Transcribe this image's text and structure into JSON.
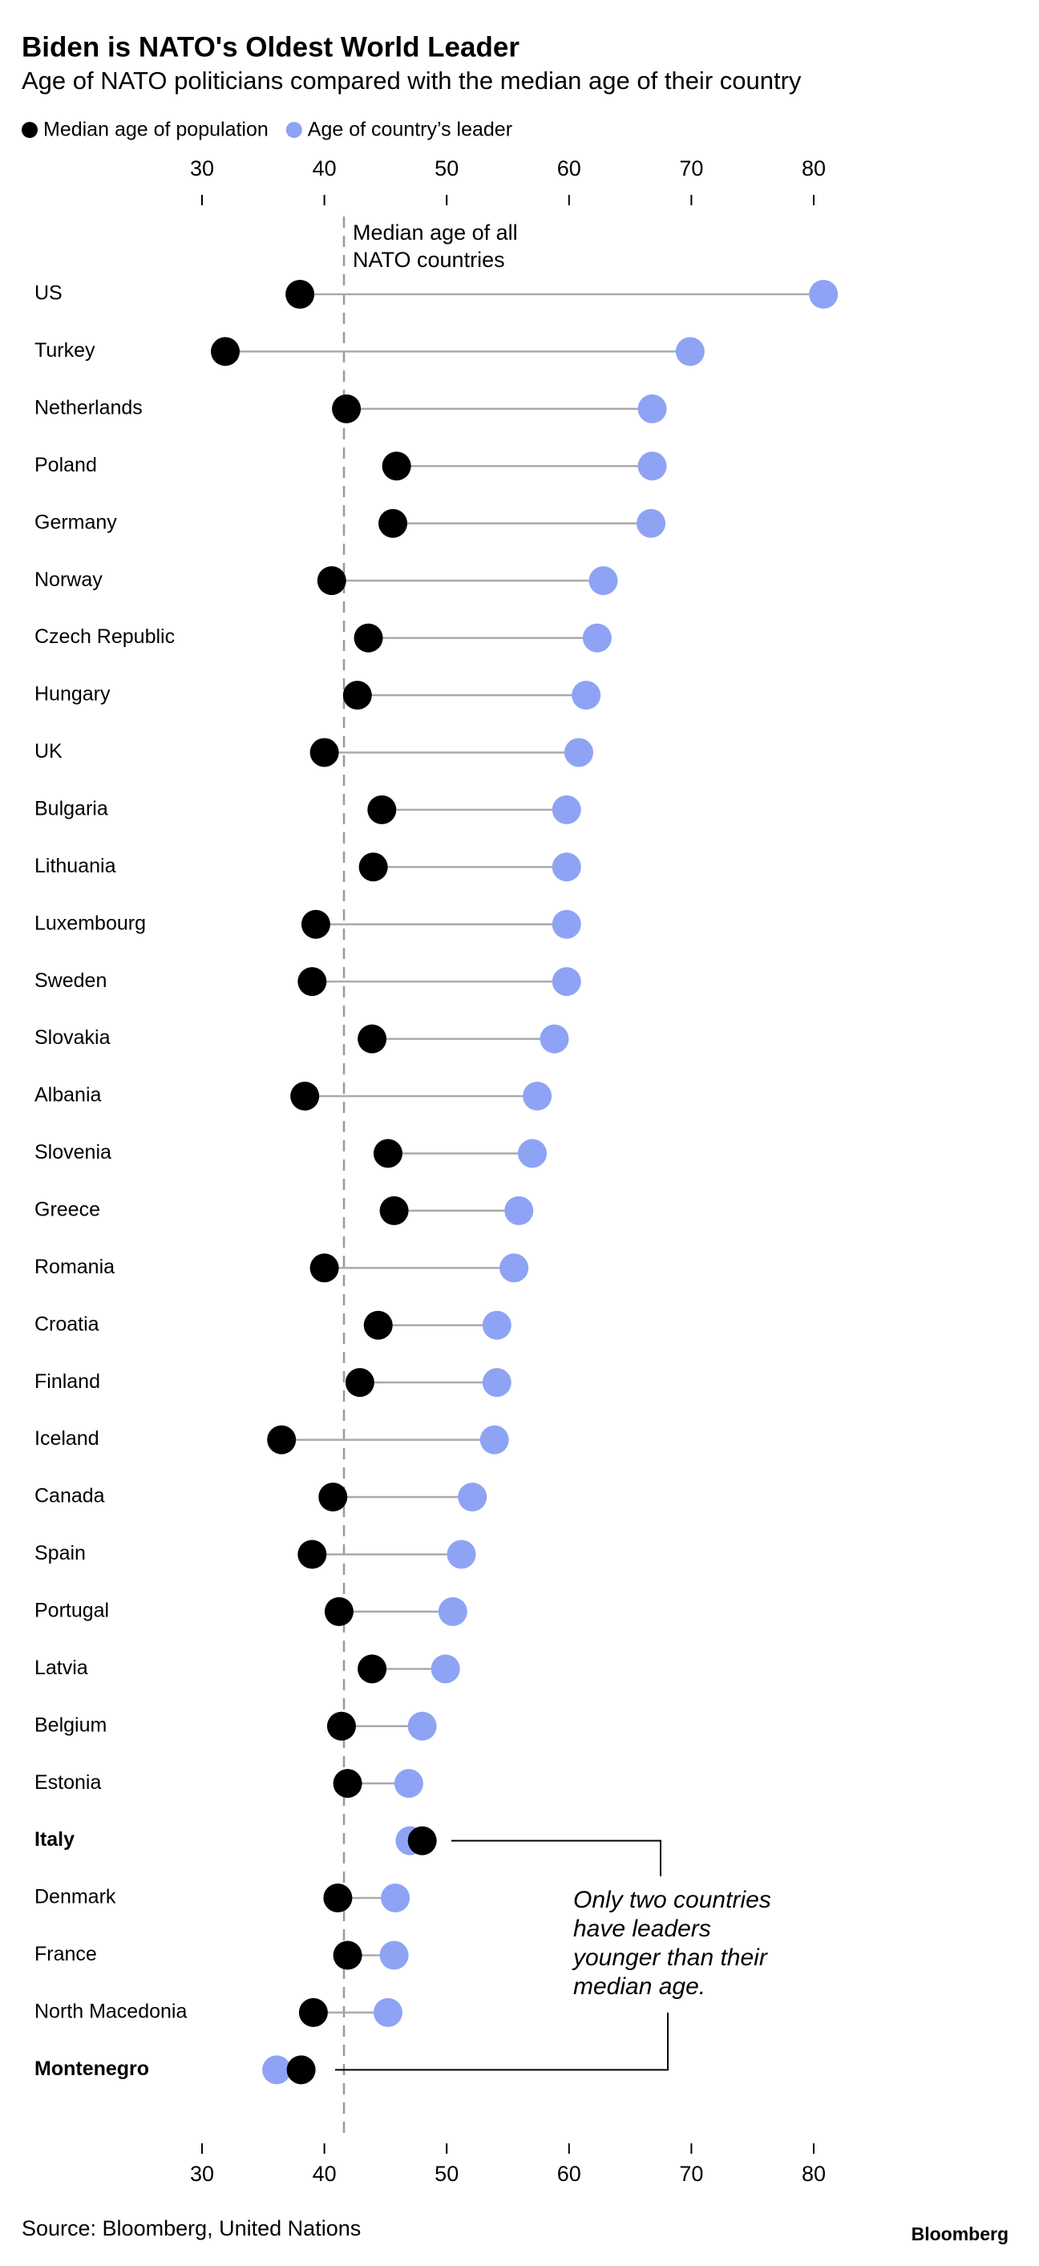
{
  "chart_data": {
    "type": "dumbbell",
    "title": "Biden is NATO's Oldest World Leader",
    "subtitle": "Age of NATO politicians compared with the median age of their country",
    "source": "Source: Bloomberg, United Nations",
    "brand": "Bloomberg",
    "categories": [
      "US",
      "Turkey",
      "Netherlands",
      "Poland",
      "Germany",
      "Norway",
      "Czech Republic",
      "Hungary",
      "UK",
      "Bulgaria",
      "Lithuania",
      "Luxembourg",
      "Sweden",
      "Slovakia",
      "Albania",
      "Slovenia",
      "Greece",
      "Romania",
      "Croatia",
      "Finland",
      "Iceland",
      "Canada",
      "Spain",
      "Portugal",
      "Latvia",
      "Belgium",
      "Estonia",
      "Italy",
      "Denmark",
      "France",
      "North Macedonia",
      "Montenegro"
    ],
    "bold_categories": [
      27,
      31
    ],
    "series": [
      {
        "name": "Median age of population",
        "color": "#000000",
        "values": [
          38.0,
          31.9,
          41.8,
          45.9,
          45.6,
          40.6,
          43.6,
          42.7,
          40.0,
          44.7,
          44.0,
          39.3,
          39.0,
          43.9,
          38.4,
          45.2,
          45.7,
          40.0,
          44.4,
          42.9,
          36.5,
          40.7,
          39.0,
          41.2,
          43.9,
          41.4,
          41.9,
          48.0,
          41.1,
          41.9,
          39.1,
          38.1
        ]
      },
      {
        "name": "Age of country’s leader",
        "color": "#8fa3f5",
        "values": [
          80.8,
          69.9,
          66.8,
          66.8,
          66.7,
          62.8,
          62.3,
          61.4,
          60.8,
          59.8,
          59.8,
          59.8,
          59.8,
          58.8,
          57.4,
          57.0,
          55.9,
          55.5,
          54.1,
          54.1,
          53.9,
          52.1,
          51.2,
          50.5,
          49.9,
          48.0,
          46.9,
          47.0,
          45.8,
          45.7,
          45.2,
          36.1
        ]
      }
    ],
    "xlim": [
      28,
      82
    ],
    "xticks": [
      30,
      40,
      50,
      60,
      70,
      80
    ],
    "median_line": {
      "value": 41.6,
      "label": [
        "Median age of all",
        "NATO countries"
      ]
    },
    "annotation": [
      "Only two countries",
      "have leaders",
      "younger than their",
      "median age."
    ]
  }
}
